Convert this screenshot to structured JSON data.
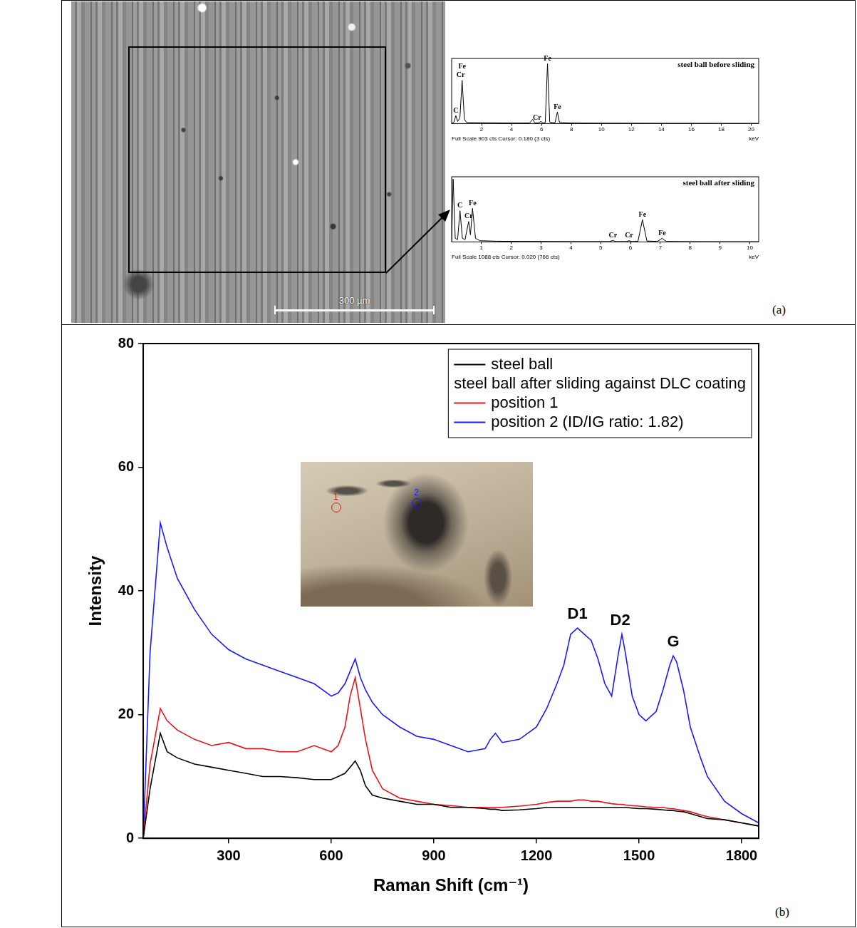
{
  "panel_a": {
    "label": "(a)",
    "micrograph": {
      "scale_bar": "300 µm"
    }
  },
  "panel_b": {
    "label": "(b)",
    "inset": {
      "markers": [
        {
          "label": "1",
          "color": "#e8141c"
        },
        {
          "label": "2",
          "color": "#1a1aff"
        }
      ]
    }
  },
  "chart_data": [
    {
      "type": "line",
      "title": "steel ball before sliding",
      "note": "Full Scale 903 cts Cursor: 0.180 (3 cts)",
      "x_unit": "keV",
      "x": [
        0,
        0.15,
        0.28,
        0.4,
        0.55,
        0.7,
        0.85,
        1.0,
        2,
        3,
        4,
        5.2,
        5.41,
        5.55,
        5.8,
        5.95,
        6.1,
        6.25,
        6.4,
        6.55,
        6.9,
        7.06,
        7.2,
        8,
        10,
        12,
        14,
        16,
        18,
        20.5
      ],
      "values": [
        0,
        20,
        110,
        30,
        80,
        600,
        60,
        15,
        12,
        10,
        8,
        8,
        60,
        10,
        8,
        30,
        10,
        15,
        830,
        20,
        10,
        160,
        15,
        8,
        6,
        5,
        4,
        4,
        3,
        3
      ],
      "color": "#000000",
      "marker": "none",
      "xlim": [
        0,
        20.5
      ],
      "xticks": [
        2,
        4,
        6,
        8,
        10,
        12,
        14,
        16,
        18,
        20
      ],
      "ylim": [
        0,
        903
      ],
      "tick_labels": "x",
      "grid": false,
      "annotations": [
        {
          "text": "C",
          "x": 0.28
        },
        {
          "text": "Cr",
          "x": 0.6
        },
        {
          "text": "Fe",
          "x": 0.7
        },
        {
          "text": "Cr",
          "x": 5.7
        },
        {
          "text": "Fe",
          "x": 6.4
        },
        {
          "text": "Fe",
          "x": 7.06
        }
      ]
    },
    {
      "type": "line",
      "title": "steel ball after sliding",
      "note": "Full Scale 1088 cts Cursor: 0.020 (766 cts)",
      "x_unit": "keV",
      "x": [
        0,
        0.05,
        0.12,
        0.2,
        0.28,
        0.36,
        0.45,
        0.57,
        0.63,
        0.7,
        0.8,
        0.95,
        1.5,
        2,
        3,
        4,
        5,
        5.3,
        5.41,
        5.5,
        5.85,
        5.95,
        6.05,
        6.25,
        6.4,
        6.55,
        6.9,
        7.06,
        7.2,
        8,
        9,
        10.3
      ],
      "values": [
        0,
        1050,
        60,
        40,
        520,
        60,
        40,
        340,
        120,
        560,
        60,
        20,
        12,
        10,
        8,
        6,
        6,
        6,
        25,
        6,
        6,
        20,
        6,
        10,
        370,
        15,
        8,
        60,
        8,
        5,
        4,
        4
      ],
      "color": "#000000",
      "marker": "none",
      "xlim": [
        0,
        10.3
      ],
      "xticks": [
        1,
        2,
        3,
        4,
        5,
        6,
        7,
        8,
        9,
        10
      ],
      "ylim": [
        0,
        1088
      ],
      "tick_labels": "x",
      "grid": false,
      "annotations": [
        {
          "text": "C",
          "x": 0.28
        },
        {
          "text": "Cr",
          "x": 0.57
        },
        {
          "text": "Fe",
          "x": 0.7
        },
        {
          "text": "Cr",
          "x": 5.41
        },
        {
          "text": "Cr",
          "x": 5.95
        },
        {
          "text": "Fe",
          "x": 6.4
        },
        {
          "text": "Fe",
          "x": 7.06
        }
      ]
    },
    {
      "type": "line",
      "x_label": "Raman Shift (cm⁻¹)",
      "y_label": "Intensity",
      "x": [
        50,
        70,
        100,
        120,
        150,
        200,
        250,
        300,
        350,
        400,
        450,
        500,
        550,
        600,
        620,
        640,
        655,
        670,
        685,
        700,
        720,
        750,
        800,
        850,
        900,
        950,
        1000,
        1050,
        1065,
        1080,
        1100,
        1150,
        1200,
        1230,
        1260,
        1280,
        1300,
        1320,
        1340,
        1360,
        1380,
        1400,
        1420,
        1440,
        1450,
        1460,
        1480,
        1500,
        1520,
        1550,
        1570,
        1590,
        1600,
        1610,
        1630,
        1650,
        1680,
        1700,
        1750,
        1800,
        1850
      ],
      "series": [
        {
          "name": "steel ball",
          "color": "#000000",
          "values": [
            0,
            8,
            17,
            14,
            13,
            12,
            11.5,
            11,
            10.5,
            10,
            10,
            9.8,
            9.5,
            9.5,
            10,
            10.5,
            11.5,
            12.5,
            11,
            8.5,
            7,
            6.5,
            6,
            5.5,
            5.5,
            5,
            5,
            4.8,
            4.7,
            4.7,
            4.5,
            4.6,
            4.8,
            5,
            5,
            5,
            5,
            5,
            5,
            5,
            5,
            5,
            5,
            5,
            5,
            5,
            4.9,
            4.8,
            4.8,
            4.7,
            4.6,
            4.5,
            4.5,
            4.4,
            4.3,
            4,
            3.5,
            3.2,
            3,
            2.5,
            2
          ]
        },
        {
          "name": "position 1",
          "color": "#e8141c",
          "values": [
            0,
            12,
            21,
            19,
            17.5,
            16,
            15,
            15.5,
            14.5,
            14.5,
            14,
            14,
            15,
            14,
            15,
            18,
            23,
            26,
            21,
            16,
            11,
            8,
            6.5,
            6,
            5.5,
            5.3,
            5,
            5,
            5,
            5,
            5,
            5.2,
            5.5,
            5.8,
            6,
            6,
            6,
            6.2,
            6.2,
            6,
            6,
            5.8,
            5.6,
            5.5,
            5.5,
            5.4,
            5.3,
            5.2,
            5.1,
            5,
            5,
            4.8,
            4.8,
            4.7,
            4.5,
            4.3,
            3.8,
            3.5,
            3,
            2.5,
            2
          ]
        },
        {
          "name": "position 2 (ID/IG ratio: 1.82)",
          "color": "#1a1aff",
          "values": [
            0,
            30,
            51,
            47,
            42,
            37,
            33,
            30.5,
            29,
            28,
            27,
            26,
            25,
            23,
            23.5,
            25,
            27,
            29,
            26,
            24,
            22,
            20,
            18,
            16.5,
            16,
            15,
            14,
            14.5,
            16,
            17,
            15.5,
            16,
            18,
            21,
            25,
            28,
            33,
            34,
            33,
            32,
            29,
            25,
            23,
            30,
            33,
            30,
            23,
            20,
            19,
            20.5,
            24,
            28,
            29.5,
            28.5,
            24,
            18,
            13,
            10,
            6,
            4,
            2.5
          ]
        }
      ],
      "marker": "none",
      "legend": "upper right",
      "legend_subtitle": "steel ball after sliding against DLC coating",
      "xlim": [
        50,
        1850
      ],
      "xticks": [
        300,
        600,
        900,
        1200,
        1500,
        1800
      ],
      "ylim": [
        0,
        80
      ],
      "yticks": [
        0,
        20,
        40,
        60,
        80
      ],
      "grid": false,
      "annotations": [
        {
          "text": "D1",
          "x": 1320
        },
        {
          "text": "D2",
          "x": 1445
        },
        {
          "text": "G",
          "x": 1600
        }
      ]
    }
  ]
}
